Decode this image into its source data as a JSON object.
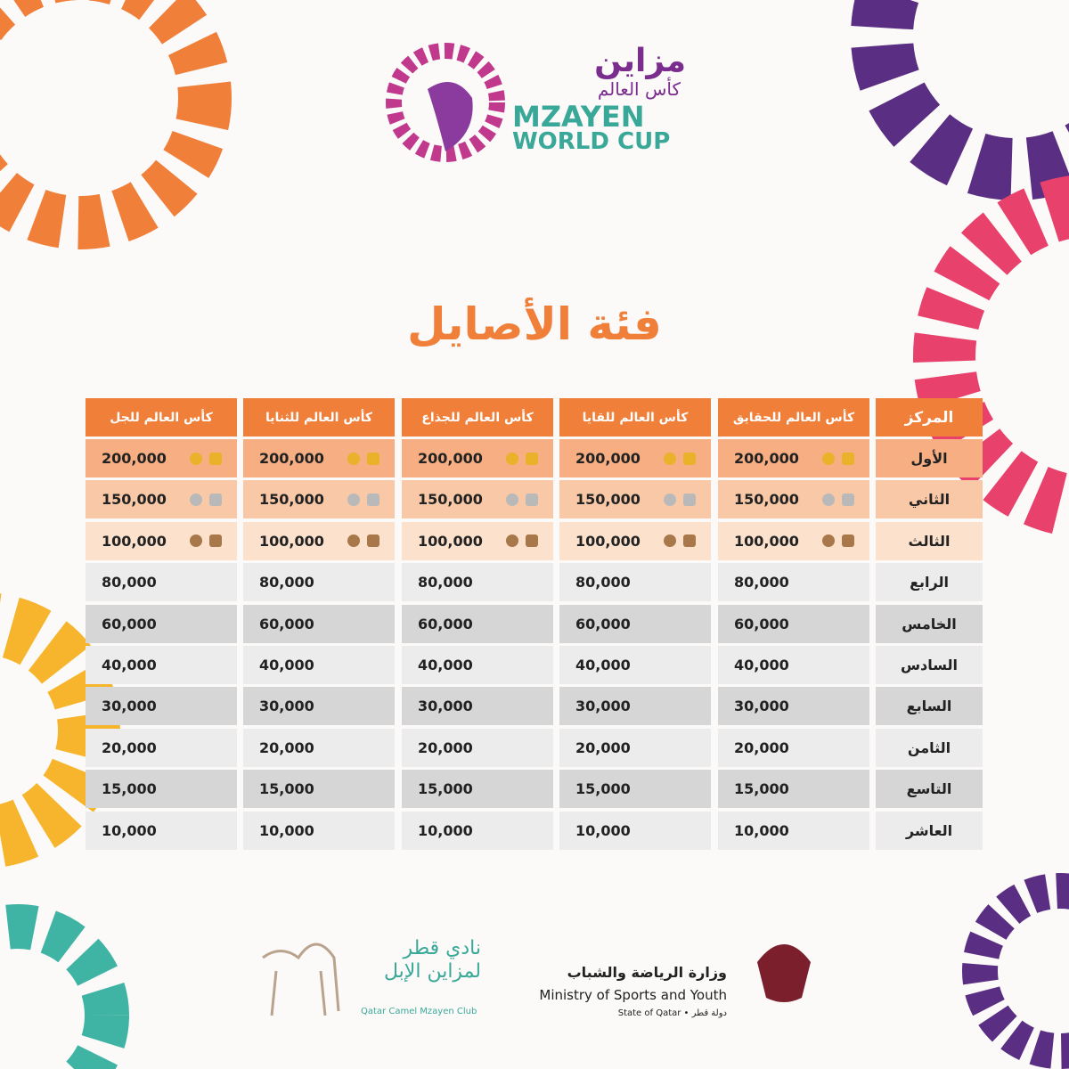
{
  "logo": {
    "arabic_name": "مزاين",
    "arabic_subtitle": "كأس العالم",
    "english_name": "MZAYEN",
    "english_subtitle": "WORLD CUP"
  },
  "title": "فئة الأصايل",
  "table": {
    "headers": [
      "المركز",
      "كأس العالم للحقايق",
      "كأس العالم للقايا",
      "كأس العالم للجذاع",
      "كأس العالم للثنايا",
      "كأس العالم للجل"
    ],
    "rows": [
      [
        "الأول",
        "200,000",
        "200,000",
        "200,000",
        "200,000",
        "200,000"
      ],
      [
        "الثاني",
        "150,000",
        "150,000",
        "150,000",
        "150,000",
        "150,000"
      ],
      [
        "الثالث",
        "100,000",
        "100,000",
        "100,000",
        "100,000",
        "100,000"
      ],
      [
        "الرابع",
        "80,000",
        "80,000",
        "80,000",
        "80,000",
        "80,000"
      ],
      [
        "الخامس",
        "60,000",
        "60,000",
        "60,000",
        "60,000",
        "60,000"
      ],
      [
        "السادس",
        "40,000",
        "40,000",
        "40,000",
        "40,000",
        "40,000"
      ],
      [
        "السابع",
        "30,000",
        "30,000",
        "30,000",
        "30,000",
        "30,000"
      ],
      [
        "الثامن",
        "20,000",
        "20,000",
        "20,000",
        "20,000",
        "20,000"
      ],
      [
        "التاسع",
        "15,000",
        "15,000",
        "15,000",
        "15,000",
        "15,000"
      ],
      [
        "العاشر",
        "10,000",
        "10,000",
        "10,000",
        "10,000",
        "10,000"
      ]
    ]
  },
  "footer": {
    "club_arabic": "نادي قطر لمزاين الإبل",
    "club_english": "Qatar Camel Mzayen Club",
    "ministry_arabic": "وزارة الرياضة والشباب",
    "ministry_english": "Ministry of Sports and Youth",
    "state": "State of Qatar • دولة قطر"
  }
}
